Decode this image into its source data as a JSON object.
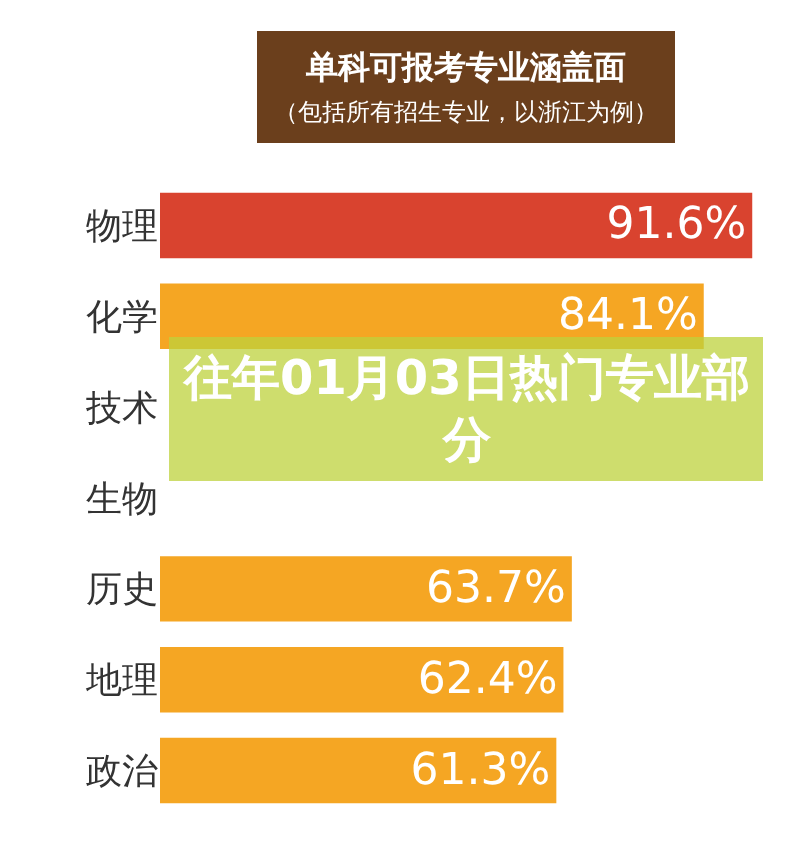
{
  "chart_data": {
    "type": "bar",
    "orientation": "horizontal",
    "title": "单科可报考专业涵盖面",
    "subtitle": "（包括所有招生专业，以浙江为例）",
    "categories": [
      "物理",
      "化学",
      "技术",
      "生物",
      "历史",
      "地理",
      "政治"
    ],
    "values": [
      91.6,
      84.1,
      null,
      null,
      63.7,
      62.4,
      61.3
    ],
    "value_labels": [
      "91.6%",
      "84.1%",
      null,
      null,
      "63.7%",
      "62.4%",
      "61.3%"
    ],
    "colors": [
      "#d9432f",
      "#f5a623",
      "#f5a623",
      "#f5a623",
      "#f5a623",
      "#f5a623",
      "#f5a623"
    ],
    "annotations": [
      "往年01月03日热门专业部分"
    ],
    "legend": false,
    "tick_labels": "y"
  }
}
